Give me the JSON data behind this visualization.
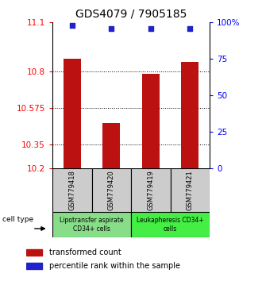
{
  "title": "GDS4079 / 7905185",
  "categories": [
    "GSM779418",
    "GSM779420",
    "GSM779419",
    "GSM779421"
  ],
  "bar_values": [
    10.875,
    10.48,
    10.785,
    10.855
  ],
  "percentile_values": [
    98,
    96,
    96,
    96
  ],
  "ylim_left": [
    10.2,
    11.1
  ],
  "ylim_right": [
    0,
    100
  ],
  "yticks_left": [
    10.2,
    10.35,
    10.575,
    10.8,
    11.1
  ],
  "yticks_right": [
    0,
    25,
    50,
    75,
    100
  ],
  "ytick_labels_left": [
    "10.2",
    "10.35",
    "10.575",
    "10.8",
    "11.1"
  ],
  "ytick_labels_right": [
    "0",
    "25",
    "50",
    "75",
    "100%"
  ],
  "grid_lines": [
    10.35,
    10.575,
    10.8
  ],
  "bar_color": "#bb1111",
  "scatter_color": "#2222cc",
  "group1_label": "Lipotransfer aspirate\nCD34+ cells",
  "group2_label": "Leukapheresis CD34+\ncells",
  "sample_box_color": "#cccccc",
  "group1_color": "#88dd88",
  "group2_color": "#44ee44",
  "cell_type_label": "cell type",
  "legend_bar_label": "transformed count",
  "legend_scatter_label": "percentile rank within the sample",
  "title_fontsize": 10,
  "tick_fontsize": 7.5
}
